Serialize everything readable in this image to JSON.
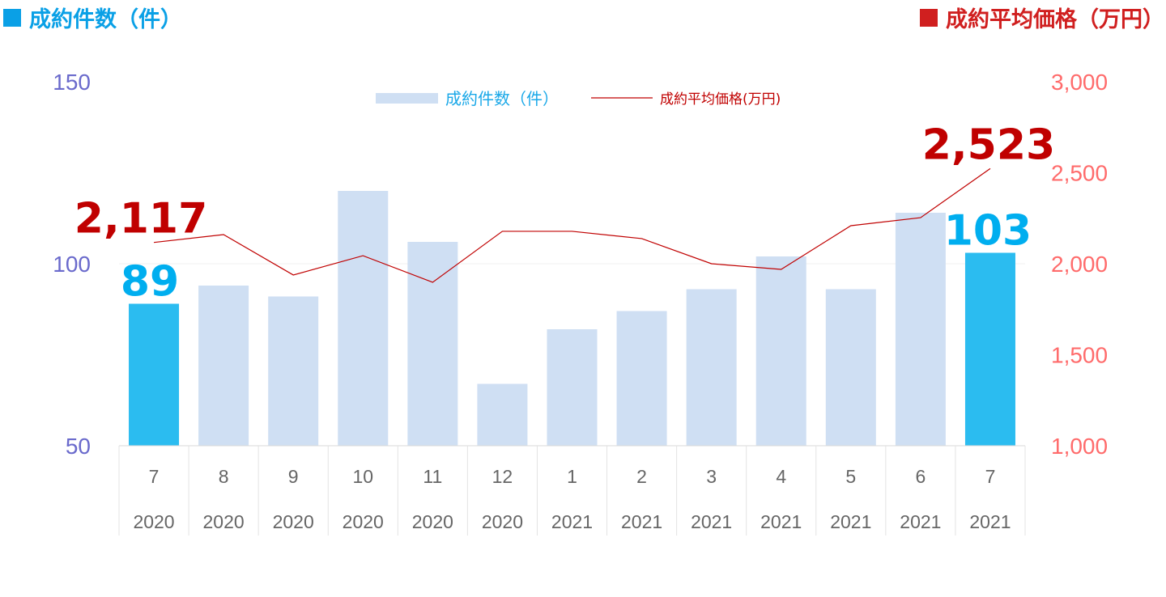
{
  "headers": {
    "left": {
      "label": "成約件数（件）",
      "color": "#0aa0e6"
    },
    "right": {
      "label": "成約平均価格（万円）",
      "color": "#d01f1f"
    }
  },
  "chart_data": {
    "type": "bar",
    "categories": [
      {
        "month": "7",
        "year": "2020"
      },
      {
        "month": "8",
        "year": "2020"
      },
      {
        "month": "9",
        "year": "2020"
      },
      {
        "month": "10",
        "year": "2020"
      },
      {
        "month": "11",
        "year": "2020"
      },
      {
        "month": "12",
        "year": "2020"
      },
      {
        "month": "1",
        "year": "2021"
      },
      {
        "month": "2",
        "year": "2021"
      },
      {
        "month": "3",
        "year": "2021"
      },
      {
        "month": "4",
        "year": "2021"
      },
      {
        "month": "5",
        "year": "2021"
      },
      {
        "month": "6",
        "year": "2021"
      },
      {
        "month": "7",
        "year": "2021"
      }
    ],
    "series": [
      {
        "name": "成約件数（件）",
        "type": "bar",
        "axis": "left",
        "values": [
          89,
          94,
          91,
          120,
          106,
          67,
          82,
          87,
          93,
          102,
          93,
          114,
          103
        ],
        "color": "#cfdff3",
        "highlight_color": "#2bbcf0",
        "highlight_indices": [
          0,
          12
        ],
        "label_color": "#00aeef"
      },
      {
        "name": "成約平均価格(万円)",
        "type": "line",
        "axis": "right",
        "values": [
          2117,
          2160,
          1938,
          2044,
          1898,
          2178,
          2178,
          2138,
          2000,
          1969,
          2209,
          2253,
          2523
        ],
        "color": "#c00000",
        "label_indices": [
          0,
          12
        ]
      }
    ],
    "y_left": {
      "range": [
        50,
        150
      ],
      "ticks": [
        "50",
        "100",
        "150"
      ],
      "color": "#6a6acc"
    },
    "y_right": {
      "range": [
        1000,
        3000
      ],
      "ticks": [
        "1,000",
        "1,500",
        "2,000",
        "2,500",
        "3,000"
      ],
      "color": "#ff6b6b"
    },
    "data_labels": {
      "bar_first": "89",
      "bar_last": "103",
      "line_first": "2,117",
      "line_last": "2,523"
    },
    "legend": {
      "placement": "top-center"
    },
    "grid": true
  }
}
